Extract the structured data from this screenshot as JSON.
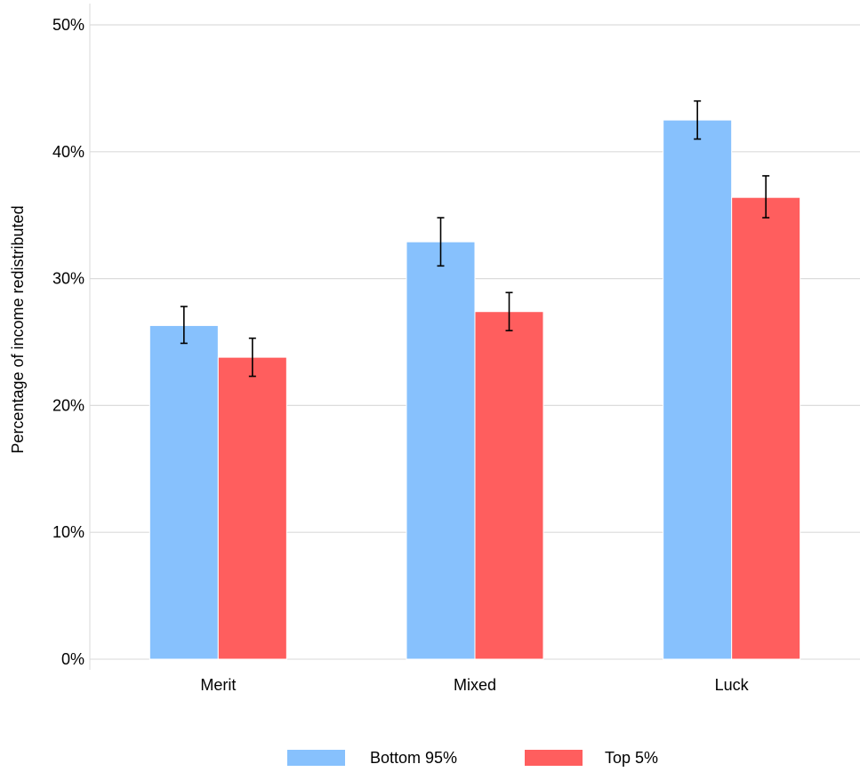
{
  "chart_data": {
    "type": "bar",
    "title": "",
    "xlabel": "",
    "ylabel": "Percentage of income redistributed",
    "categories": [
      "Merit",
      "Mixed",
      "Luck"
    ],
    "series": [
      {
        "name": "Bottom 95%",
        "color": "#87c1fd",
        "values": [
          26.3,
          32.9,
          42.5
        ],
        "error_low": [
          24.9,
          31.0,
          41.0
        ],
        "error_high": [
          27.8,
          34.8,
          44.0
        ]
      },
      {
        "name": "Top 5%",
        "color": "#ff5e5e",
        "values": [
          23.8,
          27.4,
          36.4
        ],
        "error_low": [
          22.3,
          25.9,
          34.8
        ],
        "error_high": [
          25.3,
          28.9,
          38.1
        ]
      }
    ],
    "ylim": [
      0,
      50
    ],
    "yticks": [
      0,
      10,
      20,
      30,
      40,
      50
    ],
    "ytick_labels": [
      "0%",
      "10%",
      "20%",
      "30%",
      "40%",
      "50%"
    ],
    "grid": true,
    "legend_position": "bottom"
  }
}
